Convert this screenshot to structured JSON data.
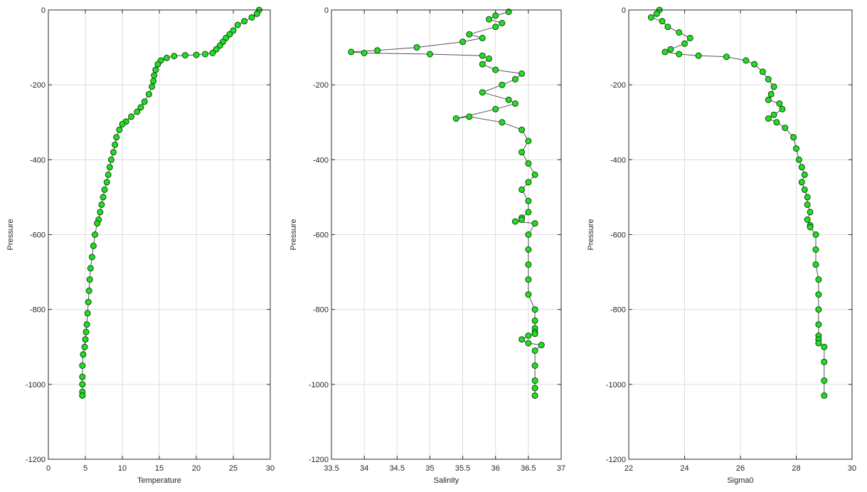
{
  "chart_data": [
    {
      "type": "line",
      "marker": "circle",
      "xlabel": "Temperature",
      "ylabel": "Pressure",
      "xlim": [
        0,
        30
      ],
      "ylim": [
        -1200,
        0
      ],
      "xticks": [
        "0",
        "5",
        "10",
        "15",
        "20",
        "25",
        "30"
      ],
      "yticks": [
        "0",
        "-200",
        "-400",
        "-600",
        "-800",
        "-1000",
        "-1200"
      ],
      "grid": true,
      "series": [
        {
          "x": [
            28.5,
            28.2,
            27.5,
            26.5,
            25.6,
            25.0,
            24.5,
            24.0,
            23.6,
            23.2,
            22.7,
            22.2,
            21.2,
            20.0,
            18.5,
            17.0,
            16.0,
            15.2,
            14.8,
            14.5,
            14.3,
            14.2,
            14.0,
            13.6,
            13.0,
            12.5,
            12.0,
            11.2,
            10.5,
            10.0,
            9.6,
            9.2,
            9.0,
            8.8,
            8.5,
            8.3,
            8.1,
            7.9,
            7.6,
            7.4,
            7.2,
            7.0,
            6.8,
            6.6,
            6.3,
            6.1,
            5.9,
            5.7,
            5.6,
            5.5,
            5.4,
            5.3,
            5.2,
            5.1,
            5.0,
            4.9,
            4.7,
            4.6,
            4.6,
            4.6,
            4.6,
            4.6
          ],
          "y": [
            0,
            -10,
            -20,
            -30,
            -40,
            -55,
            -65,
            -75,
            -85,
            -95,
            -105,
            -115,
            -118,
            -120,
            -121,
            -123,
            -128,
            -135,
            -145,
            -160,
            -175,
            -190,
            -205,
            -225,
            -245,
            -260,
            -272,
            -285,
            -298,
            -305,
            -320,
            -340,
            -360,
            -380,
            -400,
            -420,
            -440,
            -460,
            -480,
            -500,
            -520,
            -540,
            -560,
            -570,
            -600,
            -630,
            -660,
            -690,
            -720,
            -750,
            -780,
            -810,
            -840,
            -860,
            -880,
            -900,
            -920,
            -950,
            -980,
            -1000,
            -1020,
            -1030
          ]
        }
      ]
    },
    {
      "type": "line",
      "marker": "circle",
      "xlabel": "Salinity",
      "ylabel": "Pressure",
      "xlim": [
        33.5,
        37
      ],
      "ylim": [
        -1200,
        0
      ],
      "xticks": [
        "33.5",
        "34",
        "34.5",
        "35",
        "35.5",
        "36",
        "36.5",
        "37"
      ],
      "yticks": [
        "0",
        "-200",
        "-400",
        "-600",
        "-800",
        "-1000",
        "-1200"
      ],
      "grid": true,
      "series": [
        {
          "x": [
            36.2,
            36.0,
            35.9,
            36.1,
            36.0,
            35.6,
            35.8,
            35.5,
            34.8,
            34.2,
            33.8,
            34.0,
            35.0,
            35.8,
            35.9,
            35.8,
            36.0,
            36.4,
            36.3,
            36.1,
            35.8,
            36.2,
            36.3,
            36.0,
            35.4,
            35.6,
            36.1,
            36.4,
            36.5,
            36.4,
            36.5,
            36.6,
            36.5,
            36.4,
            36.5,
            36.5,
            36.4,
            36.4,
            36.3,
            36.6,
            36.5,
            36.5,
            36.5,
            36.5,
            36.5,
            36.6,
            36.6,
            36.6,
            36.6,
            36.6,
            36.5,
            36.4,
            36.5,
            36.7,
            36.6,
            36.6,
            36.6,
            36.6,
            36.6
          ],
          "y": [
            -5,
            -15,
            -25,
            -35,
            -45,
            -65,
            -75,
            -85,
            -100,
            -108,
            -112,
            -115,
            -118,
            -122,
            -130,
            -145,
            -160,
            -170,
            -185,
            -200,
            -220,
            -240,
            -250,
            -265,
            -290,
            -285,
            -300,
            -320,
            -350,
            -380,
            -410,
            -440,
            -460,
            -480,
            -510,
            -540,
            -555,
            -560,
            -565,
            -570,
            -600,
            -640,
            -680,
            -720,
            -760,
            -800,
            -830,
            -850,
            -860,
            -865,
            -870,
            -880,
            -890,
            -895,
            -910,
            -950,
            -990,
            -1010,
            -1030
          ]
        }
      ]
    },
    {
      "type": "line",
      "marker": "circle",
      "xlabel": "Sigma0",
      "ylabel": "Pressure",
      "xlim": [
        22,
        30
      ],
      "ylim": [
        -1200,
        0
      ],
      "xticks": [
        "22",
        "24",
        "26",
        "28",
        "30"
      ],
      "yticks": [
        "0",
        "-200",
        "-400",
        "-600",
        "-800",
        "-1000",
        "-1200"
      ],
      "grid": true,
      "series": [
        {
          "x": [
            23.1,
            23.0,
            22.8,
            23.2,
            23.4,
            23.8,
            24.2,
            24.0,
            23.5,
            23.3,
            23.8,
            24.5,
            25.5,
            26.2,
            26.5,
            26.8,
            27.0,
            27.2,
            27.1,
            27.0,
            27.4,
            27.5,
            27.2,
            27.0,
            27.3,
            27.6,
            27.9,
            28.0,
            28.1,
            28.2,
            28.3,
            28.2,
            28.3,
            28.4,
            28.4,
            28.5,
            28.4,
            28.5,
            28.5,
            28.7,
            28.7,
            28.7,
            28.8,
            28.8,
            28.8,
            28.8,
            28.8,
            28.8,
            28.8,
            29.0,
            29.0,
            29.0,
            29.0
          ],
          "y": [
            0,
            -10,
            -20,
            -30,
            -45,
            -60,
            -75,
            -90,
            -105,
            -112,
            -118,
            -122,
            -125,
            -135,
            -145,
            -165,
            -185,
            -205,
            -225,
            -240,
            -250,
            -265,
            -280,
            -290,
            -300,
            -315,
            -340,
            -370,
            -400,
            -420,
            -440,
            -460,
            -480,
            -500,
            -520,
            -540,
            -560,
            -575,
            -580,
            -600,
            -640,
            -680,
            -720,
            -760,
            -800,
            -840,
            -870,
            -880,
            -890,
            -900,
            -940,
            -990,
            -1030
          ]
        }
      ]
    }
  ],
  "style": {
    "marker_fill": "#22dd22",
    "marker_edge": "#0f4a0f",
    "line_color": "#555555",
    "grid_color": "#dcdcdc"
  }
}
